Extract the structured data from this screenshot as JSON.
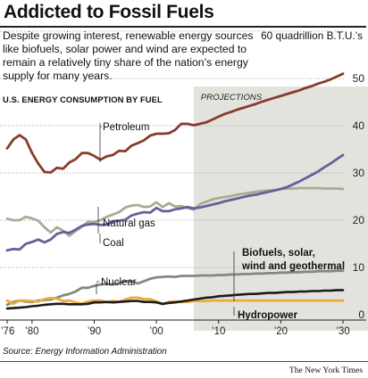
{
  "header": {
    "title": "Addicted to Fossil Fuels",
    "subtitle": "Despite growing interest, renewable energy sources like biofuels, solar power and wind are expected to remain a relatively tiny share of the nation’s energy supply for many years.",
    "unit_label": "60 quadrillion B.T.U.’s"
  },
  "chart_label": "U.S. ENERGY CONSUMPTION BY FUEL",
  "source": "Source: Energy Information Administration",
  "credit": "The New York Times",
  "colors": {
    "petroleum": "#8b3a2e",
    "natural_gas": "#a9ab97",
    "coal": "#6f5b9a",
    "nuclear": "#7f8a80",
    "biofuels_solar_wind_geothermal": "#1b1b1b",
    "hydropower": "#efab3a",
    "projection_shade": "#e3e3de",
    "grid": "#8a8a8a"
  },
  "chart_data": {
    "type": "line",
    "title": "U.S. ENERGY CONSUMPTION BY FUEL",
    "xlabel": "",
    "ylabel": "",
    "xlim": [
      1976,
      2030
    ],
    "ylim": [
      0,
      50
    ],
    "x_ticks": [
      1976,
      1980,
      1990,
      2000,
      2010,
      2020,
      2030
    ],
    "x_tick_labels": [
      "’76",
      "’80",
      "’90",
      "’00",
      "’10",
      "’20",
      "’30"
    ],
    "y_ticks": [
      0,
      10,
      20,
      30,
      40,
      50
    ],
    "y_tick_labels": [
      "0",
      "10",
      "20",
      "30",
      "40",
      "50"
    ],
    "grid": true,
    "projection": {
      "label": "PROJECTIONS",
      "start": 2006,
      "end": 2030
    },
    "x": [
      1976,
      1977,
      1978,
      1979,
      1980,
      1981,
      1982,
      1983,
      1984,
      1985,
      1986,
      1987,
      1988,
      1989,
      1990,
      1991,
      1992,
      1993,
      1994,
      1995,
      1996,
      1997,
      1998,
      1999,
      2000,
      2001,
      2002,
      2003,
      2004,
      2005,
      2006,
      2007,
      2008,
      2009,
      2010,
      2011,
      2012,
      2013,
      2014,
      2015,
      2016,
      2017,
      2018,
      2019,
      2020,
      2021,
      2022,
      2023,
      2024,
      2025,
      2026,
      2027,
      2028,
      2029,
      2030
    ],
    "series": [
      {
        "name": "Petroleum",
        "color_key": "petroleum",
        "values": [
          35.2,
          37.1,
          38.0,
          37.1,
          34.2,
          32.0,
          30.2,
          30.1,
          31.1,
          30.9,
          32.2,
          32.9,
          34.2,
          34.2,
          33.6,
          32.8,
          33.5,
          33.8,
          34.7,
          34.6,
          35.8,
          36.3,
          36.9,
          37.9,
          38.3,
          38.3,
          38.4,
          39.1,
          40.4,
          40.4,
          40.1,
          40.4,
          40.7,
          41.3,
          41.9,
          42.5,
          42.9,
          43.4,
          43.8,
          44.2,
          44.6,
          45.1,
          45.5,
          45.9,
          46.3,
          46.7,
          47.1,
          47.5,
          48.0,
          48.4,
          48.9,
          49.3,
          49.8,
          50.4,
          51.0
        ]
      },
      {
        "name": "Natural gas",
        "color_key": "natural_gas",
        "values": [
          20.3,
          20.0,
          20.0,
          20.7,
          20.4,
          19.9,
          18.5,
          17.4,
          18.5,
          17.8,
          16.7,
          17.7,
          18.6,
          19.7,
          19.6,
          20.0,
          20.7,
          21.2,
          21.7,
          22.7,
          23.1,
          23.2,
          22.8,
          22.9,
          23.8,
          22.8,
          23.6,
          22.9,
          23.0,
          22.6,
          22.2,
          23.4,
          23.9,
          24.4,
          24.7,
          24.9,
          25.1,
          25.4,
          25.6,
          25.8,
          26.0,
          26.2,
          26.3,
          26.4,
          26.6,
          26.7,
          26.7,
          26.8,
          26.8,
          26.8,
          26.8,
          26.7,
          26.7,
          26.7,
          26.6
        ]
      },
      {
        "name": "Coal",
        "color_key": "coal",
        "values": [
          13.6,
          13.9,
          13.8,
          15.0,
          15.4,
          15.9,
          15.3,
          15.9,
          17.1,
          17.5,
          17.3,
          18.0,
          18.8,
          19.1,
          19.2,
          19.0,
          19.1,
          19.8,
          19.9,
          20.1,
          21.0,
          21.4,
          21.7,
          21.6,
          22.6,
          21.9,
          21.9,
          22.3,
          22.5,
          22.8,
          22.5,
          22.7,
          23.0,
          23.3,
          23.6,
          24.0,
          24.3,
          24.6,
          24.9,
          25.2,
          25.4,
          25.7,
          26.0,
          26.3,
          26.6,
          27.0,
          27.6,
          28.2,
          28.9,
          29.6,
          30.3,
          31.2,
          32.0,
          32.9,
          33.8
        ]
      },
      {
        "name": "Nuclear",
        "color_key": "nuclear",
        "values": [
          2.1,
          2.7,
          3.0,
          2.8,
          2.7,
          3.0,
          3.1,
          3.2,
          3.6,
          4.1,
          4.4,
          4.9,
          5.7,
          5.7,
          6.1,
          6.4,
          6.5,
          6.4,
          6.7,
          7.1,
          7.1,
          6.6,
          7.1,
          7.6,
          7.9,
          8.0,
          8.1,
          8.0,
          8.2,
          8.2,
          8.2,
          8.3,
          8.3,
          8.3,
          8.4,
          8.4,
          8.5,
          8.5,
          8.6,
          8.6,
          8.7,
          8.7,
          8.8,
          8.8,
          8.9,
          8.9,
          9.0,
          9.0,
          9.1,
          9.1,
          9.2,
          9.2,
          9.2,
          9.3,
          9.3
        ]
      },
      {
        "name": "Biofuels, solar, wind and geothermal",
        "color_key": "biofuels_solar_wind_geothermal",
        "values": [
          1.3,
          1.4,
          1.5,
          1.6,
          1.8,
          1.9,
          2.1,
          2.2,
          2.3,
          2.3,
          2.2,
          2.2,
          2.2,
          2.3,
          2.6,
          2.6,
          2.7,
          2.6,
          2.7,
          2.8,
          2.9,
          2.9,
          2.7,
          2.7,
          2.6,
          2.3,
          2.5,
          2.6,
          2.8,
          3.0,
          3.2,
          3.4,
          3.6,
          3.7,
          3.9,
          4.0,
          4.1,
          4.2,
          4.3,
          4.4,
          4.4,
          4.5,
          4.6,
          4.6,
          4.7,
          4.8,
          4.8,
          4.9,
          4.9,
          5.0,
          5.0,
          5.1,
          5.1,
          5.2,
          5.2
        ]
      },
      {
        "name": "Hydropower",
        "color_key": "hydropower",
        "values": [
          3.0,
          2.3,
          3.0,
          3.0,
          2.9,
          2.8,
          3.3,
          3.5,
          3.4,
          2.9,
          3.0,
          2.6,
          2.3,
          2.8,
          3.0,
          3.0,
          2.6,
          2.9,
          2.7,
          3.2,
          3.6,
          3.6,
          3.3,
          3.3,
          2.8,
          2.2,
          2.7,
          2.8,
          2.7,
          2.7,
          2.9,
          2.9,
          2.9,
          3.0,
          3.0,
          3.0,
          3.0,
          3.0,
          3.0,
          3.0,
          3.0,
          3.0,
          3.0,
          3.0,
          3.0,
          3.0,
          3.0,
          3.0,
          3.0,
          3.0,
          3.0,
          3.0,
          3.0,
          3.0,
          3.0
        ]
      }
    ],
    "annotations": {
      "petroleum": "Petroleum",
      "natural_gas": "Natural gas",
      "coal": "Coal",
      "nuclear": "Nuclear",
      "renewables": [
        "Biofuels, solar,",
        "wind and geothermal"
      ],
      "hydropower": "Hydropower"
    },
    "legend": "none"
  }
}
